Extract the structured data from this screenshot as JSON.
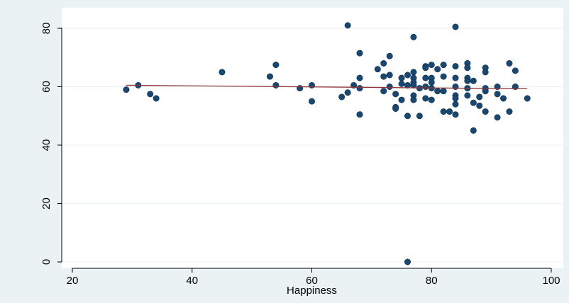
{
  "chart_data": {
    "type": "scatter",
    "title": "",
    "xlabel": "Happiness",
    "ylabel": "",
    "xlim": [
      20,
      100
    ],
    "ylim": [
      0,
      80
    ],
    "x_ticks": [
      "20",
      "40",
      "60",
      "80",
      "100"
    ],
    "y_ticks": [
      "0",
      "20",
      "40",
      "60",
      "80"
    ],
    "grid": true,
    "legend": "none",
    "colors": {
      "outer_background": "#eaf2f3",
      "plot_background": "#ffffff",
      "points": "#1a476f",
      "fit_line": "#90353b",
      "grid": "#eaf2f3"
    },
    "series": [
      {
        "kind": "scatter",
        "points": [
          [
            29,
            59
          ],
          [
            31,
            60.5
          ],
          [
            33,
            57.5
          ],
          [
            34,
            56
          ],
          [
            45,
            65
          ],
          [
            53,
            63.5
          ],
          [
            54,
            67.5
          ],
          [
            54,
            60.5
          ],
          [
            58,
            59.5
          ],
          [
            60,
            60.5
          ],
          [
            60,
            55
          ],
          [
            65,
            56.5
          ],
          [
            66,
            58
          ],
          [
            66,
            81
          ],
          [
            67,
            60.5
          ],
          [
            68,
            71.5
          ],
          [
            68,
            63
          ],
          [
            68,
            59.5
          ],
          [
            68,
            50.5
          ],
          [
            71,
            66
          ],
          [
            72,
            68
          ],
          [
            72,
            63.5
          ],
          [
            72,
            58.5
          ],
          [
            73,
            70.5
          ],
          [
            73,
            64
          ],
          [
            73,
            60
          ],
          [
            74,
            57.5
          ],
          [
            74,
            53
          ],
          [
            74,
            52.5
          ],
          [
            75,
            63
          ],
          [
            75,
            61
          ],
          [
            75,
            55.5
          ],
          [
            76,
            64
          ],
          [
            76,
            60.5
          ],
          [
            76,
            50
          ],
          [
            76,
            0
          ],
          [
            77,
            77
          ],
          [
            77,
            65
          ],
          [
            77,
            63
          ],
          [
            77,
            61.5
          ],
          [
            77,
            60.5
          ],
          [
            77,
            57
          ],
          [
            77,
            55.5
          ],
          [
            78,
            59.5
          ],
          [
            78,
            50
          ],
          [
            79,
            67
          ],
          [
            79,
            66.5
          ],
          [
            79,
            63
          ],
          [
            79,
            60
          ],
          [
            79,
            56
          ],
          [
            80,
            67.5
          ],
          [
            80,
            63
          ],
          [
            80,
            61.5
          ],
          [
            80,
            59.5
          ],
          [
            80,
            55.5
          ],
          [
            81,
            66
          ],
          [
            81,
            58.5
          ],
          [
            82,
            67.5
          ],
          [
            82,
            63.5
          ],
          [
            82,
            58.5
          ],
          [
            82,
            51.5
          ],
          [
            83,
            51.5
          ],
          [
            84,
            80.5
          ],
          [
            84,
            67
          ],
          [
            84,
            63
          ],
          [
            84,
            60
          ],
          [
            84,
            57
          ],
          [
            84,
            56
          ],
          [
            84,
            54
          ],
          [
            84,
            50.5
          ],
          [
            86,
            68
          ],
          [
            86,
            66.5
          ],
          [
            86,
            63
          ],
          [
            86,
            62
          ],
          [
            86,
            59.5
          ],
          [
            86,
            57
          ],
          [
            87,
            62
          ],
          [
            87,
            54.5
          ],
          [
            87,
            45
          ],
          [
            88,
            56.5
          ],
          [
            88,
            53.5
          ],
          [
            89,
            66.5
          ],
          [
            89,
            65
          ],
          [
            89,
            59.5
          ],
          [
            89,
            58.5
          ],
          [
            89,
            51.5
          ],
          [
            91,
            60
          ],
          [
            91,
            57.5
          ],
          [
            91,
            49.5
          ],
          [
            92,
            56
          ],
          [
            93,
            68
          ],
          [
            93,
            51.5
          ],
          [
            94,
            65.5
          ],
          [
            94,
            60
          ],
          [
            96,
            56
          ]
        ]
      },
      {
        "kind": "fitted_line",
        "x": [
          29,
          96
        ],
        "y": [
          60.5,
          59.3
        ]
      }
    ]
  }
}
